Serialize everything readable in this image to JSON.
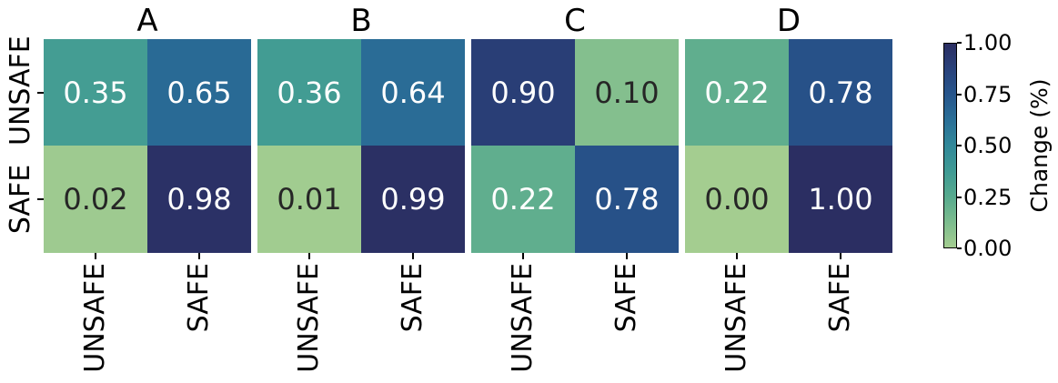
{
  "chart_data": {
    "type": "heatmap",
    "description": "Four 2x2 confusion-matrix heatmaps sharing row/column categories",
    "panels": [
      {
        "title": "A",
        "rows": [
          [
            0.35,
            0.65
          ],
          [
            0.02,
            0.98
          ]
        ]
      },
      {
        "title": "B",
        "rows": [
          [
            0.36,
            0.64
          ],
          [
            0.01,
            0.99
          ]
        ]
      },
      {
        "title": "C",
        "rows": [
          [
            0.9,
            0.1
          ],
          [
            0.22,
            0.78
          ]
        ]
      },
      {
        "title": "D",
        "rows": [
          [
            0.22,
            0.78
          ],
          [
            0.0,
            1.0
          ]
        ]
      }
    ],
    "row_labels": [
      "UNSAFE",
      "SAFE"
    ],
    "col_labels": [
      "UNSAFE",
      "SAFE"
    ],
    "vmin": 0.0,
    "vmax": 1.0,
    "value_format": ".2f",
    "colorbar": {
      "label": "Change (%)",
      "tick_labels": [
        "1.00",
        "0.75",
        "0.50",
        "0.25",
        "0.00"
      ],
      "tick_values": [
        1.0,
        0.75,
        0.5,
        0.25,
        0.0
      ]
    },
    "colormap": {
      "name": "crest",
      "anchors": [
        "#a4cd90",
        "#7cbc8e",
        "#57aa8e",
        "#3f9a94",
        "#318899",
        "#2a6f97",
        "#27568c",
        "#29427b",
        "#2b2e62"
      ]
    },
    "annotation_text_colors": {
      "on_light": "#262626",
      "on_dark": "#ffffff"
    }
  }
}
